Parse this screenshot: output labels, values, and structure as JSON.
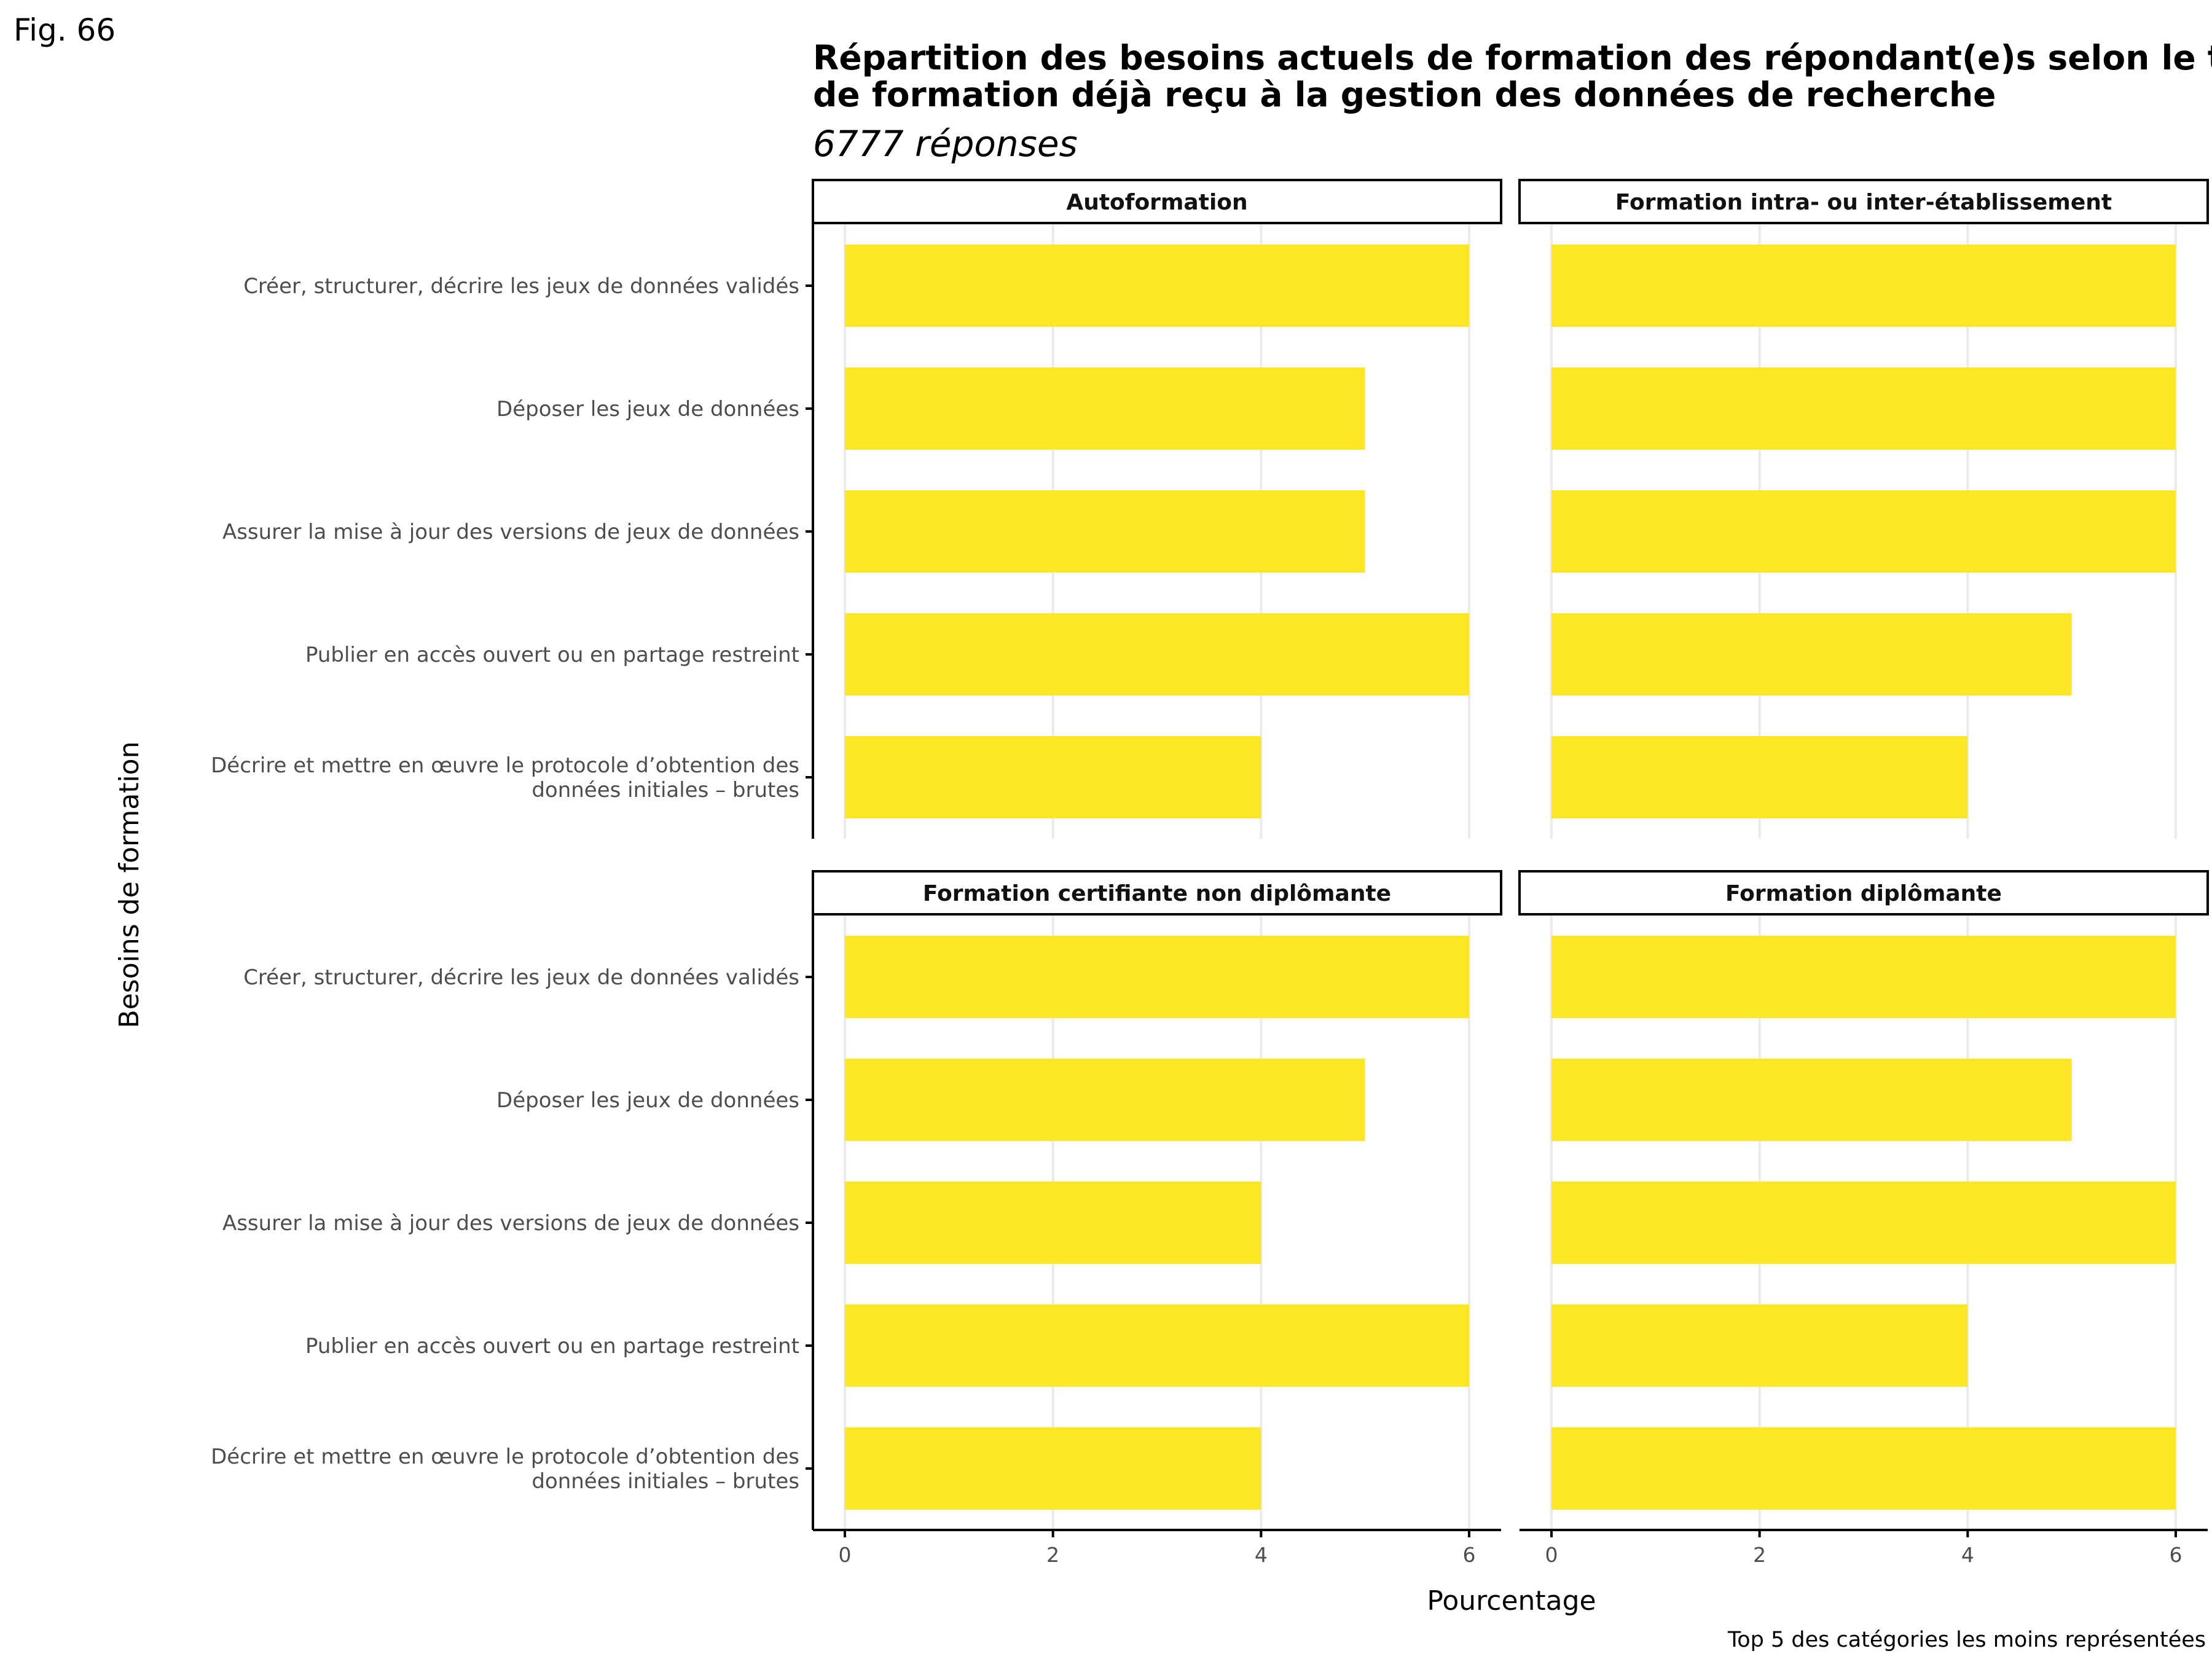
{
  "figure_label": "Fig. 66",
  "title_lines": [
    "Répartition des besoins actuels de formation des répondant(e)s selon le type",
    "de formation déjà reçu à la gestion des données de recherche"
  ],
  "subtitle": "6777 réponses",
  "caption": "Top 5 des catégories les moins représentées",
  "colors": {
    "bar": "#FDE725",
    "grid": "#EBEBEB",
    "axis": "#000000"
  },
  "chart_data": {
    "type": "bar",
    "orientation": "horizontal",
    "facets": [
      "Autoformation",
      "Formation intra- ou inter-établissement",
      "Formation certifiante non diplômante",
      "Formation diplômante"
    ],
    "categories": [
      [
        "Créer, structurer, décrire les jeux de données validés"
      ],
      [
        "Déposer les jeux de données"
      ],
      [
        "Assurer la mise à jour des versions de jeux de données"
      ],
      [
        "Publier en accès ouvert ou en partage restreint"
      ],
      [
        "Décrire et mettre en œuvre le protocole d’obtention des",
        "données initiales – brutes"
      ]
    ],
    "values": [
      [
        6,
        5,
        5,
        6,
        4
      ],
      [
        6,
        6,
        6,
        5,
        4
      ],
      [
        6,
        5,
        4,
        6,
        4
      ],
      [
        6,
        5,
        6,
        4,
        6
      ]
    ],
    "xlabel": "Pourcentage",
    "ylabel": "Besoins de formation",
    "xlim": [
      0,
      6
    ],
    "xticks": [
      "0",
      "2",
      "4",
      "6"
    ],
    "grid": "vertical"
  }
}
